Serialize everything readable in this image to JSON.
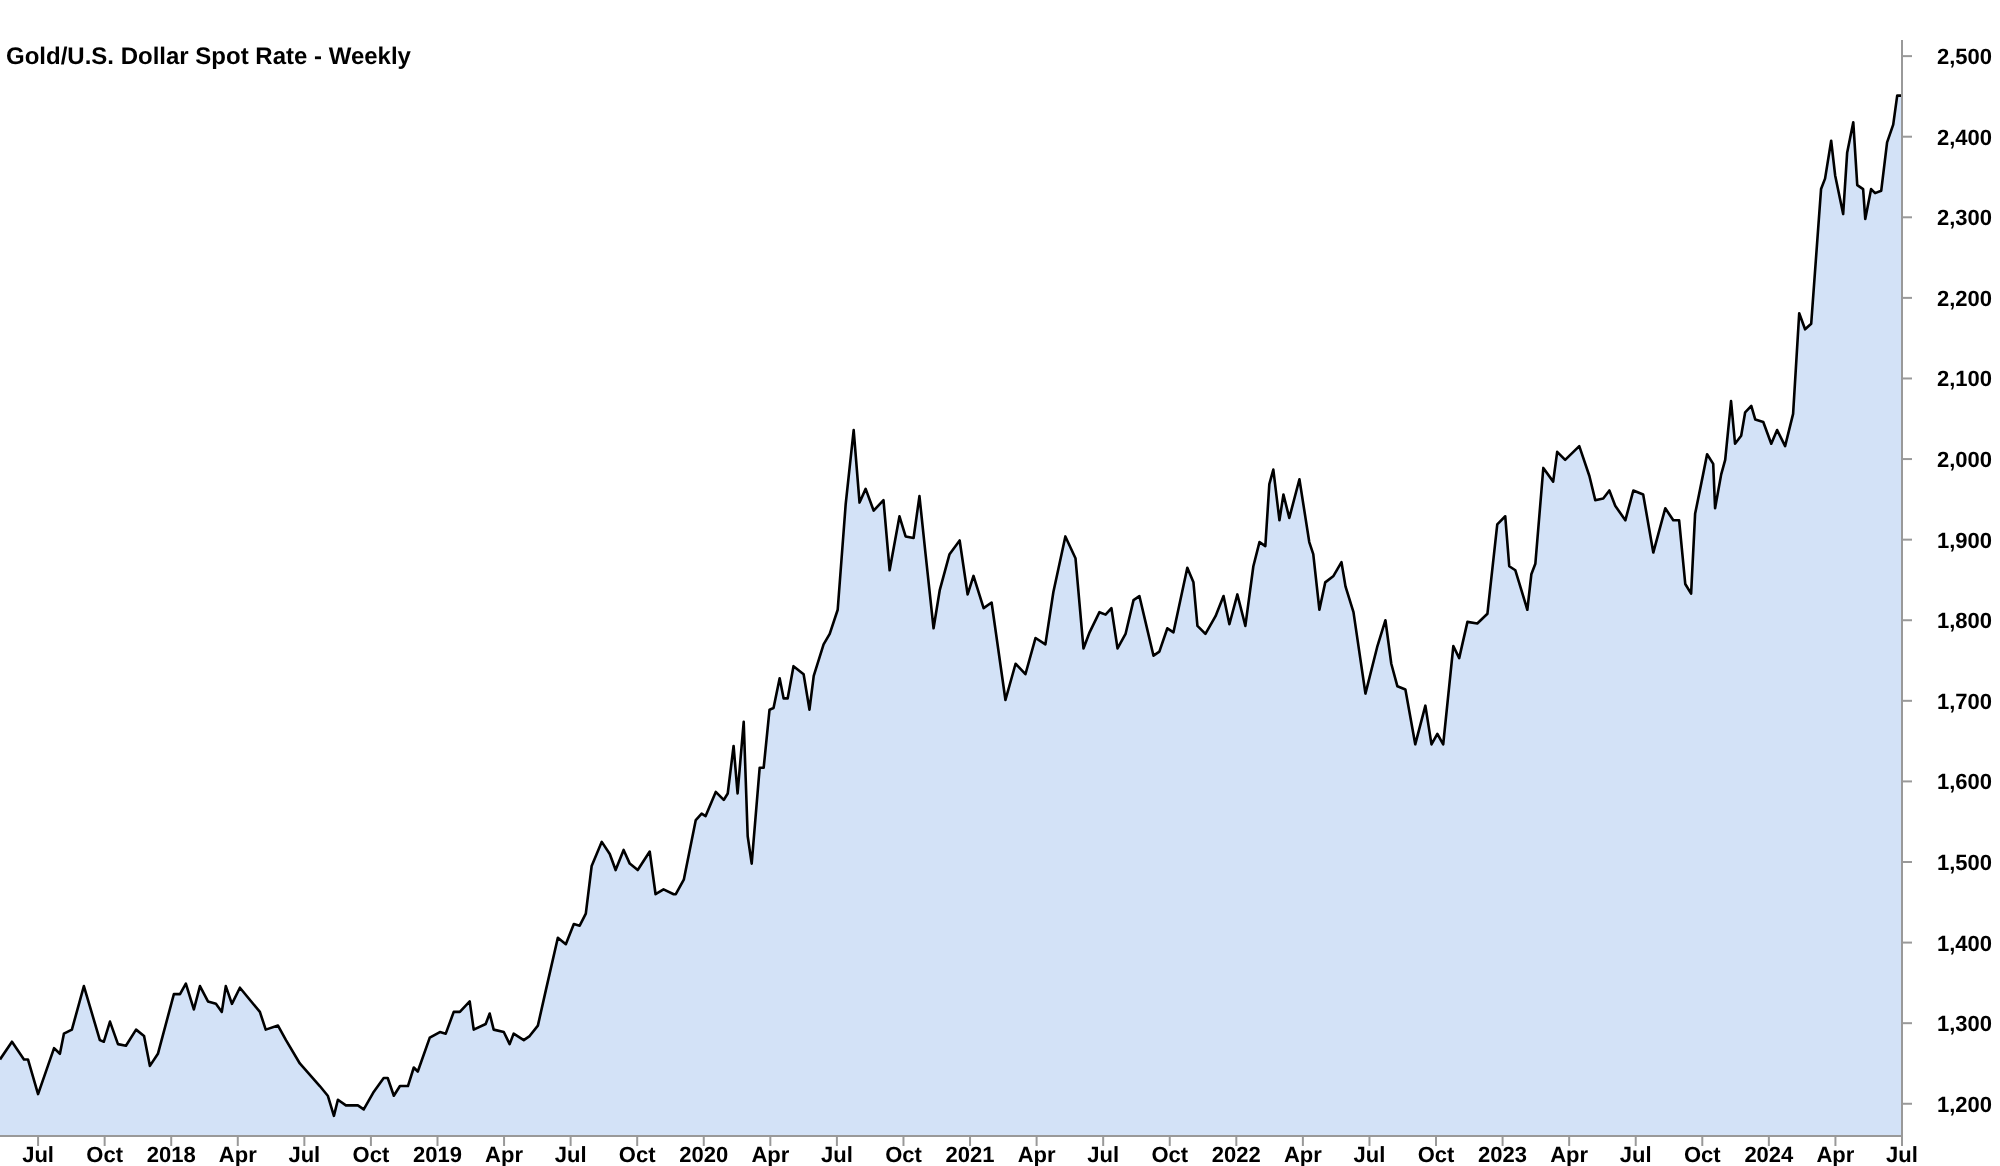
{
  "chart_data": {
    "type": "area",
    "title": "Gold/U.S. Dollar Spot Rate - Weekly",
    "xlim": [
      2017.357,
      2024.5
    ],
    "ylim": [
      1160,
      2520
    ],
    "xticks": [
      {
        "value": 2017.5,
        "label": "Jul"
      },
      {
        "value": 2017.75,
        "label": "Oct"
      },
      {
        "value": 2018,
        "label": "2018"
      },
      {
        "value": 2018.25,
        "label": "Apr"
      },
      {
        "value": 2018.5,
        "label": "Jul"
      },
      {
        "value": 2018.75,
        "label": "Oct"
      },
      {
        "value": 2019,
        "label": "2019"
      },
      {
        "value": 2019.25,
        "label": "Apr"
      },
      {
        "value": 2019.5,
        "label": "Jul"
      },
      {
        "value": 2019.75,
        "label": "Oct"
      },
      {
        "value": 2020,
        "label": "2020"
      },
      {
        "value": 2020.25,
        "label": "Apr"
      },
      {
        "value": 2020.5,
        "label": "Jul"
      },
      {
        "value": 2020.75,
        "label": "Oct"
      },
      {
        "value": 2021,
        "label": "2021"
      },
      {
        "value": 2021.25,
        "label": "Apr"
      },
      {
        "value": 2021.5,
        "label": "Jul"
      },
      {
        "value": 2021.75,
        "label": "Oct"
      },
      {
        "value": 2022,
        "label": "2022"
      },
      {
        "value": 2022.25,
        "label": "Apr"
      },
      {
        "value": 2022.5,
        "label": "Jul"
      },
      {
        "value": 2022.75,
        "label": "Oct"
      },
      {
        "value": 2023,
        "label": "2023"
      },
      {
        "value": 2023.25,
        "label": "Apr"
      },
      {
        "value": 2023.5,
        "label": "Jul"
      },
      {
        "value": 2023.75,
        "label": "Oct"
      },
      {
        "value": 2024,
        "label": "2024"
      },
      {
        "value": 2024.25,
        "label": "Apr"
      },
      {
        "value": 2024.5,
        "label": "Jul"
      }
    ],
    "yticks": [
      {
        "value": 1200,
        "label": "1,200"
      },
      {
        "value": 1300,
        "label": "1,300"
      },
      {
        "value": 1400,
        "label": "1,400"
      },
      {
        "value": 1500,
        "label": "1,500"
      },
      {
        "value": 1600,
        "label": "1,600"
      },
      {
        "value": 1700,
        "label": "1,700"
      },
      {
        "value": 1800,
        "label": "1,800"
      },
      {
        "value": 1900,
        "label": "1,900"
      },
      {
        "value": 2000,
        "label": "2,000"
      },
      {
        "value": 2100,
        "label": "2,100"
      },
      {
        "value": 2200,
        "label": "2,200"
      },
      {
        "value": 2300,
        "label": "2,300"
      },
      {
        "value": 2400,
        "label": "2,400"
      },
      {
        "value": 2500,
        "label": "2,500"
      }
    ],
    "grid": false,
    "series": [
      {
        "color": "#d3e2f7",
        "x": [
          2017.357,
          2017.402,
          2017.447,
          2017.462,
          2017.5,
          2017.56,
          2017.582,
          2017.597,
          2017.627,
          2017.672,
          2017.732,
          2017.747,
          2017.77,
          2017.8,
          2017.83,
          2017.868,
          2017.898,
          2017.92,
          2017.95,
          2018.01,
          2018.033,
          2018.055,
          2018.085,
          2018.108,
          2018.138,
          2018.168,
          2018.19,
          2018.205,
          2018.228,
          2018.258,
          2018.333,
          2018.355,
          2018.401,
          2018.431,
          2018.483,
          2018.558,
          2018.588,
          2018.611,
          2018.626,
          2018.656,
          2018.701,
          2018.723,
          2018.761,
          2018.798,
          2018.813,
          2018.836,
          2018.859,
          2018.889,
          2018.911,
          2018.926,
          2018.971,
          2019.009,
          2019.031,
          2019.061,
          2019.084,
          2019.121,
          2019.136,
          2019.181,
          2019.196,
          2019.211,
          2019.249,
          2019.271,
          2019.286,
          2019.324,
          2019.346,
          2019.377,
          2019.407,
          2019.452,
          2019.482,
          2019.512,
          2019.534,
          2019.557,
          2019.579,
          2019.617,
          2019.647,
          2019.669,
          2019.699,
          2019.722,
          2019.752,
          2019.797,
          2019.819,
          2019.849,
          2019.887,
          2019.895,
          2019.925,
          2019.97,
          2019.992,
          2020.007,
          2020.045,
          2020.075,
          2020.09,
          2020.112,
          2020.127,
          2020.15,
          2020.165,
          2020.18,
          2020.21,
          2020.225,
          2020.247,
          2020.262,
          2020.285,
          2020.3,
          2020.315,
          2020.337,
          2020.375,
          2020.397,
          2020.413,
          2020.45,
          2020.473,
          2020.503,
          2020.533,
          2020.563,
          2020.585,
          2020.608,
          2020.638,
          2020.675,
          2020.698,
          2020.735,
          2020.758,
          2020.788,
          2020.81,
          2020.833,
          2020.863,
          2020.886,
          2020.923,
          2020.961,
          2020.991,
          2021.013,
          2021.051,
          2021.081,
          2021.133,
          2021.171,
          2021.208,
          2021.246,
          2021.283,
          2021.313,
          2021.358,
          2021.396,
          2021.426,
          2021.449,
          2021.486,
          2021.509,
          2021.531,
          2021.554,
          2021.584,
          2021.614,
          2021.636,
          2021.666,
          2021.689,
          2021.711,
          2021.741,
          2021.764,
          2021.816,
          2021.839,
          2021.854,
          2021.884,
          2021.922,
          2021.952,
          2021.974,
          2022.004,
          2022.034,
          2022.064,
          2022.087,
          2022.109,
          2022.124,
          2022.139,
          2022.162,
          2022.177,
          2022.199,
          2022.237,
          2022.274,
          2022.289,
          2022.312,
          2022.334,
          2022.365,
          2022.395,
          2022.41,
          2022.44,
          2022.485,
          2022.53,
          2022.56,
          2022.582,
          2022.605,
          2022.635,
          2022.672,
          2022.71,
          2022.733,
          2022.755,
          2022.777,
          2022.815,
          2022.837,
          2022.868,
          2022.905,
          2022.943,
          2022.98,
          2023.01,
          2023.025,
          2023.048,
          2023.093,
          2023.108,
          2023.123,
          2023.153,
          2023.19,
          2023.205,
          2023.235,
          2023.288,
          2023.326,
          2023.348,
          2023.378,
          2023.401,
          2023.423,
          2023.461,
          2023.491,
          2023.528,
          2023.566,
          2023.611,
          2023.641,
          2023.663,
          2023.686,
          2023.708,
          2023.723,
          2023.753,
          2023.768,
          2023.791,
          2023.798,
          2023.821,
          2023.836,
          2023.858,
          2023.873,
          2023.896,
          2023.911,
          2023.934,
          2023.949,
          2023.979,
          2024.009,
          2024.031,
          2024.061,
          2024.091,
          2024.114,
          2024.136,
          2024.159,
          2024.196,
          2024.211,
          2024.234,
          2024.249,
          2024.279,
          2024.294,
          2024.317,
          2024.332,
          2024.354,
          2024.362,
          2024.384,
          2024.399,
          2024.422,
          2024.444,
          2024.467,
          2024.482,
          2024.497
        ],
        "values": [
          1255,
          1277,
          1255,
          1255,
          1212,
          1269,
          1262,
          1287,
          1292,
          1346,
          1279,
          1277,
          1302,
          1274,
          1272,
          1292,
          1284,
          1247,
          1262,
          1336,
          1336,
          1349,
          1317,
          1346,
          1327,
          1324,
          1314,
          1346,
          1324,
          1344,
          1314,
          1292,
          1297,
          1279,
          1250,
          1222,
          1210,
          1185,
          1205,
          1198,
          1198,
          1193,
          1215,
          1232,
          1232,
          1210,
          1222,
          1222,
          1245,
          1240,
          1282,
          1289,
          1287,
          1314,
          1314,
          1327,
          1292,
          1299,
          1312,
          1292,
          1289,
          1274,
          1287,
          1279,
          1284,
          1297,
          1341,
          1406,
          1398,
          1423,
          1421,
          1436,
          1495,
          1525,
          1510,
          1490,
          1515,
          1498,
          1490,
          1513,
          1460,
          1466,
          1460,
          1460,
          1478,
          1552,
          1560,
          1557,
          1587,
          1577,
          1585,
          1644,
          1585,
          1674,
          1532,
          1498,
          1617,
          1617,
          1689,
          1691,
          1728,
          1703,
          1703,
          1743,
          1733,
          1689,
          1731,
          1770,
          1783,
          1813,
          1944,
          2036,
          1946,
          1963,
          1936,
          1949,
          1862,
          1929,
          1904,
          1902,
          1954,
          1882,
          1790,
          1837,
          1882,
          1899,
          1832,
          1855,
          1815,
          1822,
          1701,
          1746,
          1733,
          1778,
          1770,
          1835,
          1904,
          1877,
          1765,
          1785,
          1810,
          1807,
          1815,
          1765,
          1783,
          1825,
          1830,
          1788,
          1756,
          1761,
          1790,
          1785,
          1865,
          1847,
          1793,
          1783,
          1805,
          1830,
          1795,
          1832,
          1793,
          1867,
          1897,
          1892,
          1969,
          1987,
          1924,
          1956,
          1927,
          1975,
          1897,
          1882,
          1813,
          1847,
          1855,
          1872,
          1842,
          1810,
          1709,
          1768,
          1800,
          1746,
          1718,
          1714,
          1646,
          1694,
          1646,
          1659,
          1646,
          1768,
          1753,
          1798,
          1796,
          1808,
          1919,
          1929,
          1867,
          1862,
          1813,
          1857,
          1870,
          1989,
          1972,
          2009,
          1999,
          2016,
          1979,
          1949,
          1951,
          1961,
          1942,
          1924,
          1961,
          1956,
          1884,
          1939,
          1924,
          1924,
          1845,
          1833,
          1932,
          1981,
          2006,
          1994,
          1939,
          1981,
          1999,
          2072,
          2019,
          2029,
          2058,
          2066,
          2049,
          2046,
          2019,
          2036,
          2016,
          2056,
          2181,
          2161,
          2168,
          2335,
          2348,
          2395,
          2352,
          2304,
          2380,
          2418,
          2340,
          2335,
          2298,
          2335,
          2330,
          2333,
          2393,
          2415,
          2451,
          2451
        ]
      }
    ]
  }
}
